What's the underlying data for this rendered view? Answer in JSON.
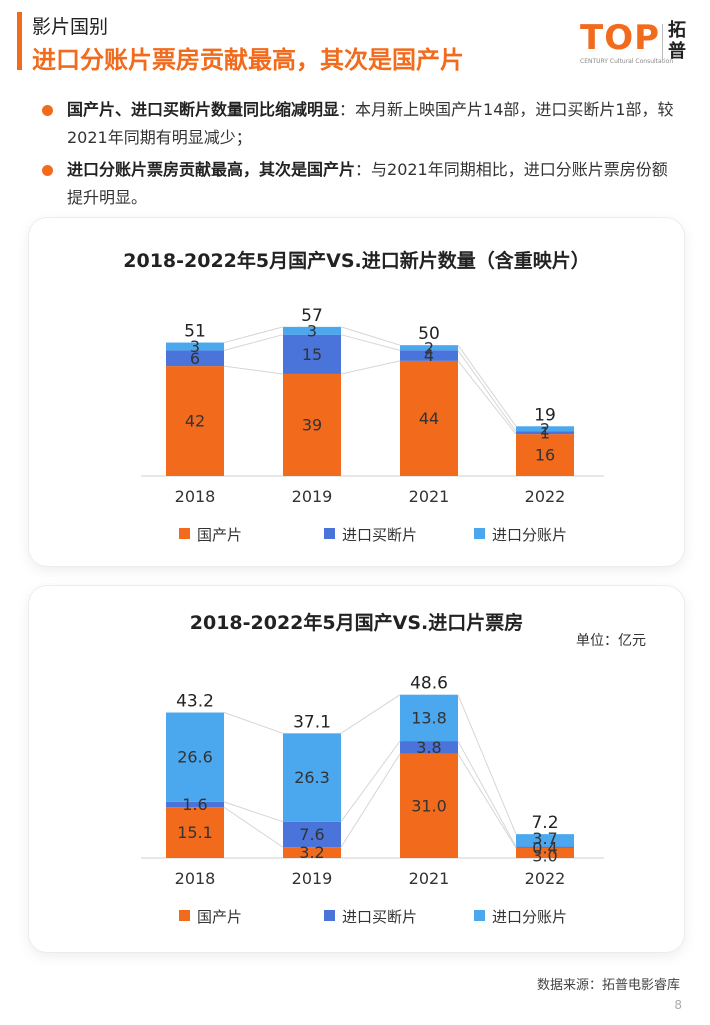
{
  "header": {
    "section": "影片国别",
    "headline": "进口分账片票房贡献最高，其次是国产片"
  },
  "logo": {
    "word": "TOP",
    "sub": "CENTURY Cultural Consultation",
    "cn": "拓普"
  },
  "bullets": [
    {
      "lead": "国产片、进口买断片数量同比缩减明显",
      "text": "：本月新上映国产片14部，进口买断片1部，较2021年同期有明显减少；"
    },
    {
      "lead": "进口分账片票房贡献最高，其次是国产片",
      "text": "：与2021年同期相比，进口分账片票房份额提升明显。"
    }
  ],
  "colors": {
    "domestic": "#f26b1d",
    "buyout": "#4a74d9",
    "revshare": "#4ba7ee",
    "accent": "#f26b1d"
  },
  "chart_data": [
    {
      "type": "bar",
      "stacked": true,
      "title": "2018-2022年5月国产VS.进口新片数量（含重映片）",
      "categories": [
        "2018",
        "2019",
        "2021",
        "2022"
      ],
      "series": [
        {
          "name": "国产片",
          "values": [
            42,
            39,
            44,
            16
          ]
        },
        {
          "name": "进口买断片",
          "values": [
            6,
            15,
            4,
            1
          ]
        },
        {
          "name": "进口分账片",
          "values": [
            3,
            3,
            2,
            2
          ]
        }
      ],
      "value_labels": [
        [
          "42",
          "39",
          "44",
          "16"
        ],
        [
          "6",
          "15",
          "4",
          "1"
        ],
        [
          "3",
          "3",
          "2",
          "2"
        ]
      ],
      "totals": [
        "51",
        "57",
        "50",
        "19"
      ],
      "ylim": [
        0,
        60
      ],
      "legend": "bottom"
    },
    {
      "type": "bar",
      "stacked": true,
      "title": "2018-2022年5月国产VS.进口片票房",
      "unit": "单位：亿元",
      "categories": [
        "2018",
        "2019",
        "2021",
        "2022"
      ],
      "series": [
        {
          "name": "国产片",
          "values": [
            15.1,
            3.2,
            31.0,
            3.0
          ]
        },
        {
          "name": "进口买断片",
          "values": [
            1.6,
            7.6,
            3.8,
            0.4
          ]
        },
        {
          "name": "进口分账片",
          "values": [
            26.6,
            26.3,
            13.8,
            3.7
          ]
        }
      ],
      "value_labels": [
        [
          "15.1",
          "3.2",
          "31.0",
          "3.0"
        ],
        [
          "1.6",
          "7.6",
          "3.8",
          "0.4"
        ],
        [
          "26.6",
          "26.3",
          "13.8",
          "3.7"
        ]
      ],
      "totals": [
        "43.2",
        "37.1",
        "48.6",
        "7.2"
      ],
      "ylim": [
        0,
        50
      ],
      "legend": "bottom"
    }
  ],
  "footer": {
    "source": "数据来源：拓普电影睿库",
    "page": "8"
  }
}
